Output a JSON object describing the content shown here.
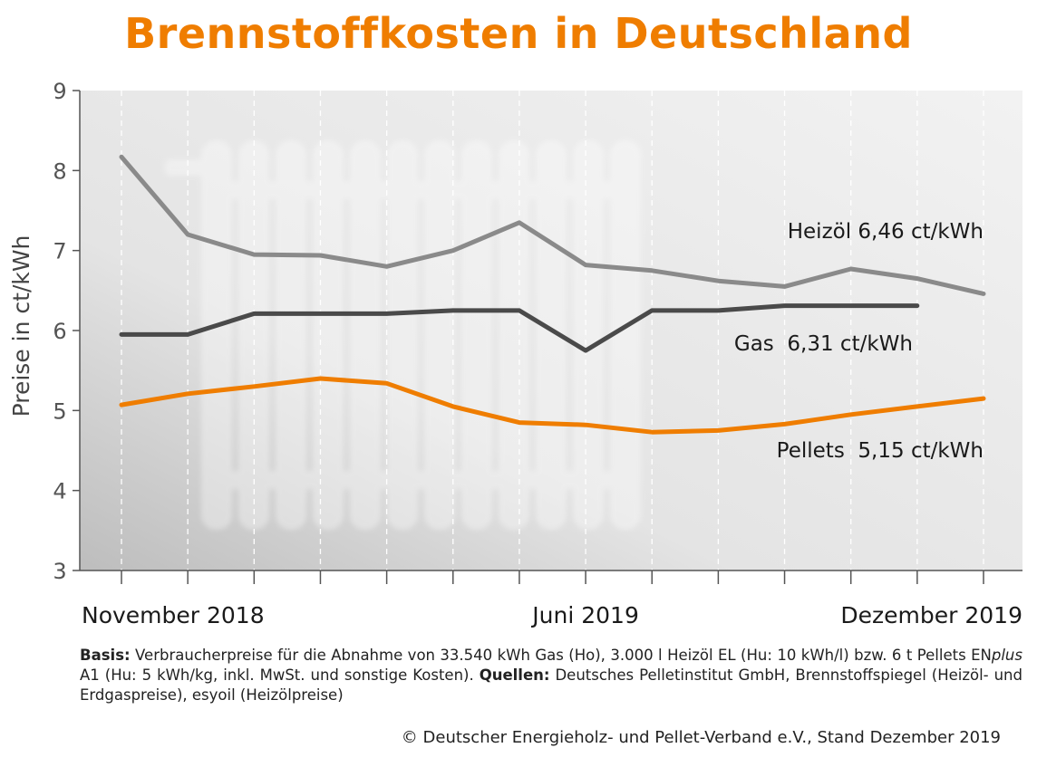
{
  "colors": {
    "title": "#ef7d00",
    "heizoel": "#8a8a8a",
    "gas": "#4a4a4a",
    "pellets": "#ef7d00",
    "plot_bg": "#e6e6e6",
    "grid": "#ffffff"
  },
  "footnote": {
    "basis_label": "Basis:",
    "basis_text": " Verbraucherpreise für die Abnahme von 33.540 kWh Gas (Ho), 3.000 l Heizöl EL (Hu: 10 kWh/l) bzw. 6 t Pellets EN",
    "enplus_italic": "plus",
    "basis_text2": " A1 (Hu: 5 kWh/kg, inkl. MwSt. und sonstige Kosten). ",
    "quellen_label": "Quellen:",
    "quellen_text": " Deutsches Pelletinstitut GmbH, Brennstoffspiegel (Heizöl- und Erdgaspreise), esyoil (Heizölpreise)"
  },
  "copyright": "© Deutscher Energieholz- und Pellet-Verband e.V., Stand Dezember 2019",
  "chart_data": {
    "type": "line",
    "title": "Brennstoffkosten in Deutschland",
    "xlabel": "",
    "ylabel": "Preise in ct/kWh",
    "ylim": [
      3,
      9
    ],
    "yticks": [
      3,
      4,
      5,
      6,
      7,
      8,
      9
    ],
    "x": [
      "2018-11",
      "2018-12",
      "2019-01",
      "2019-02",
      "2019-03",
      "2019-04",
      "2019-05",
      "2019-06",
      "2019-07",
      "2019-08",
      "2019-09",
      "2019-10",
      "2019-11",
      "2019-12"
    ],
    "xtick_labels": [
      {
        "x": "2018-11",
        "label": "November 2018"
      },
      {
        "x": "2019-06",
        "label": "Juni 2019"
      },
      {
        "x": "2019-12",
        "label": "Dezember 2019"
      }
    ],
    "grid": "vertical dashed",
    "series": [
      {
        "key": "heizoel",
        "label": "Heizöl 6,46 ct/kWh",
        "values": [
          8.17,
          7.2,
          6.95,
          6.94,
          6.8,
          7.0,
          7.35,
          6.82,
          6.75,
          6.62,
          6.55,
          6.77,
          6.65,
          6.46
        ]
      },
      {
        "key": "gas",
        "label": "Gas  6,31 ct/kWh",
        "values": [
          5.95,
          5.95,
          6.21,
          6.21,
          6.21,
          6.25,
          6.25,
          5.75,
          6.25,
          6.25,
          6.31,
          6.31,
          6.31,
          null
        ]
      },
      {
        "key": "pellets",
        "label": "Pellets  5,15 ct/kWh",
        "values": [
          5.07,
          5.21,
          5.3,
          5.4,
          5.34,
          5.05,
          4.85,
          4.82,
          4.73,
          4.75,
          4.83,
          4.95,
          5.05,
          5.15
        ]
      }
    ]
  }
}
